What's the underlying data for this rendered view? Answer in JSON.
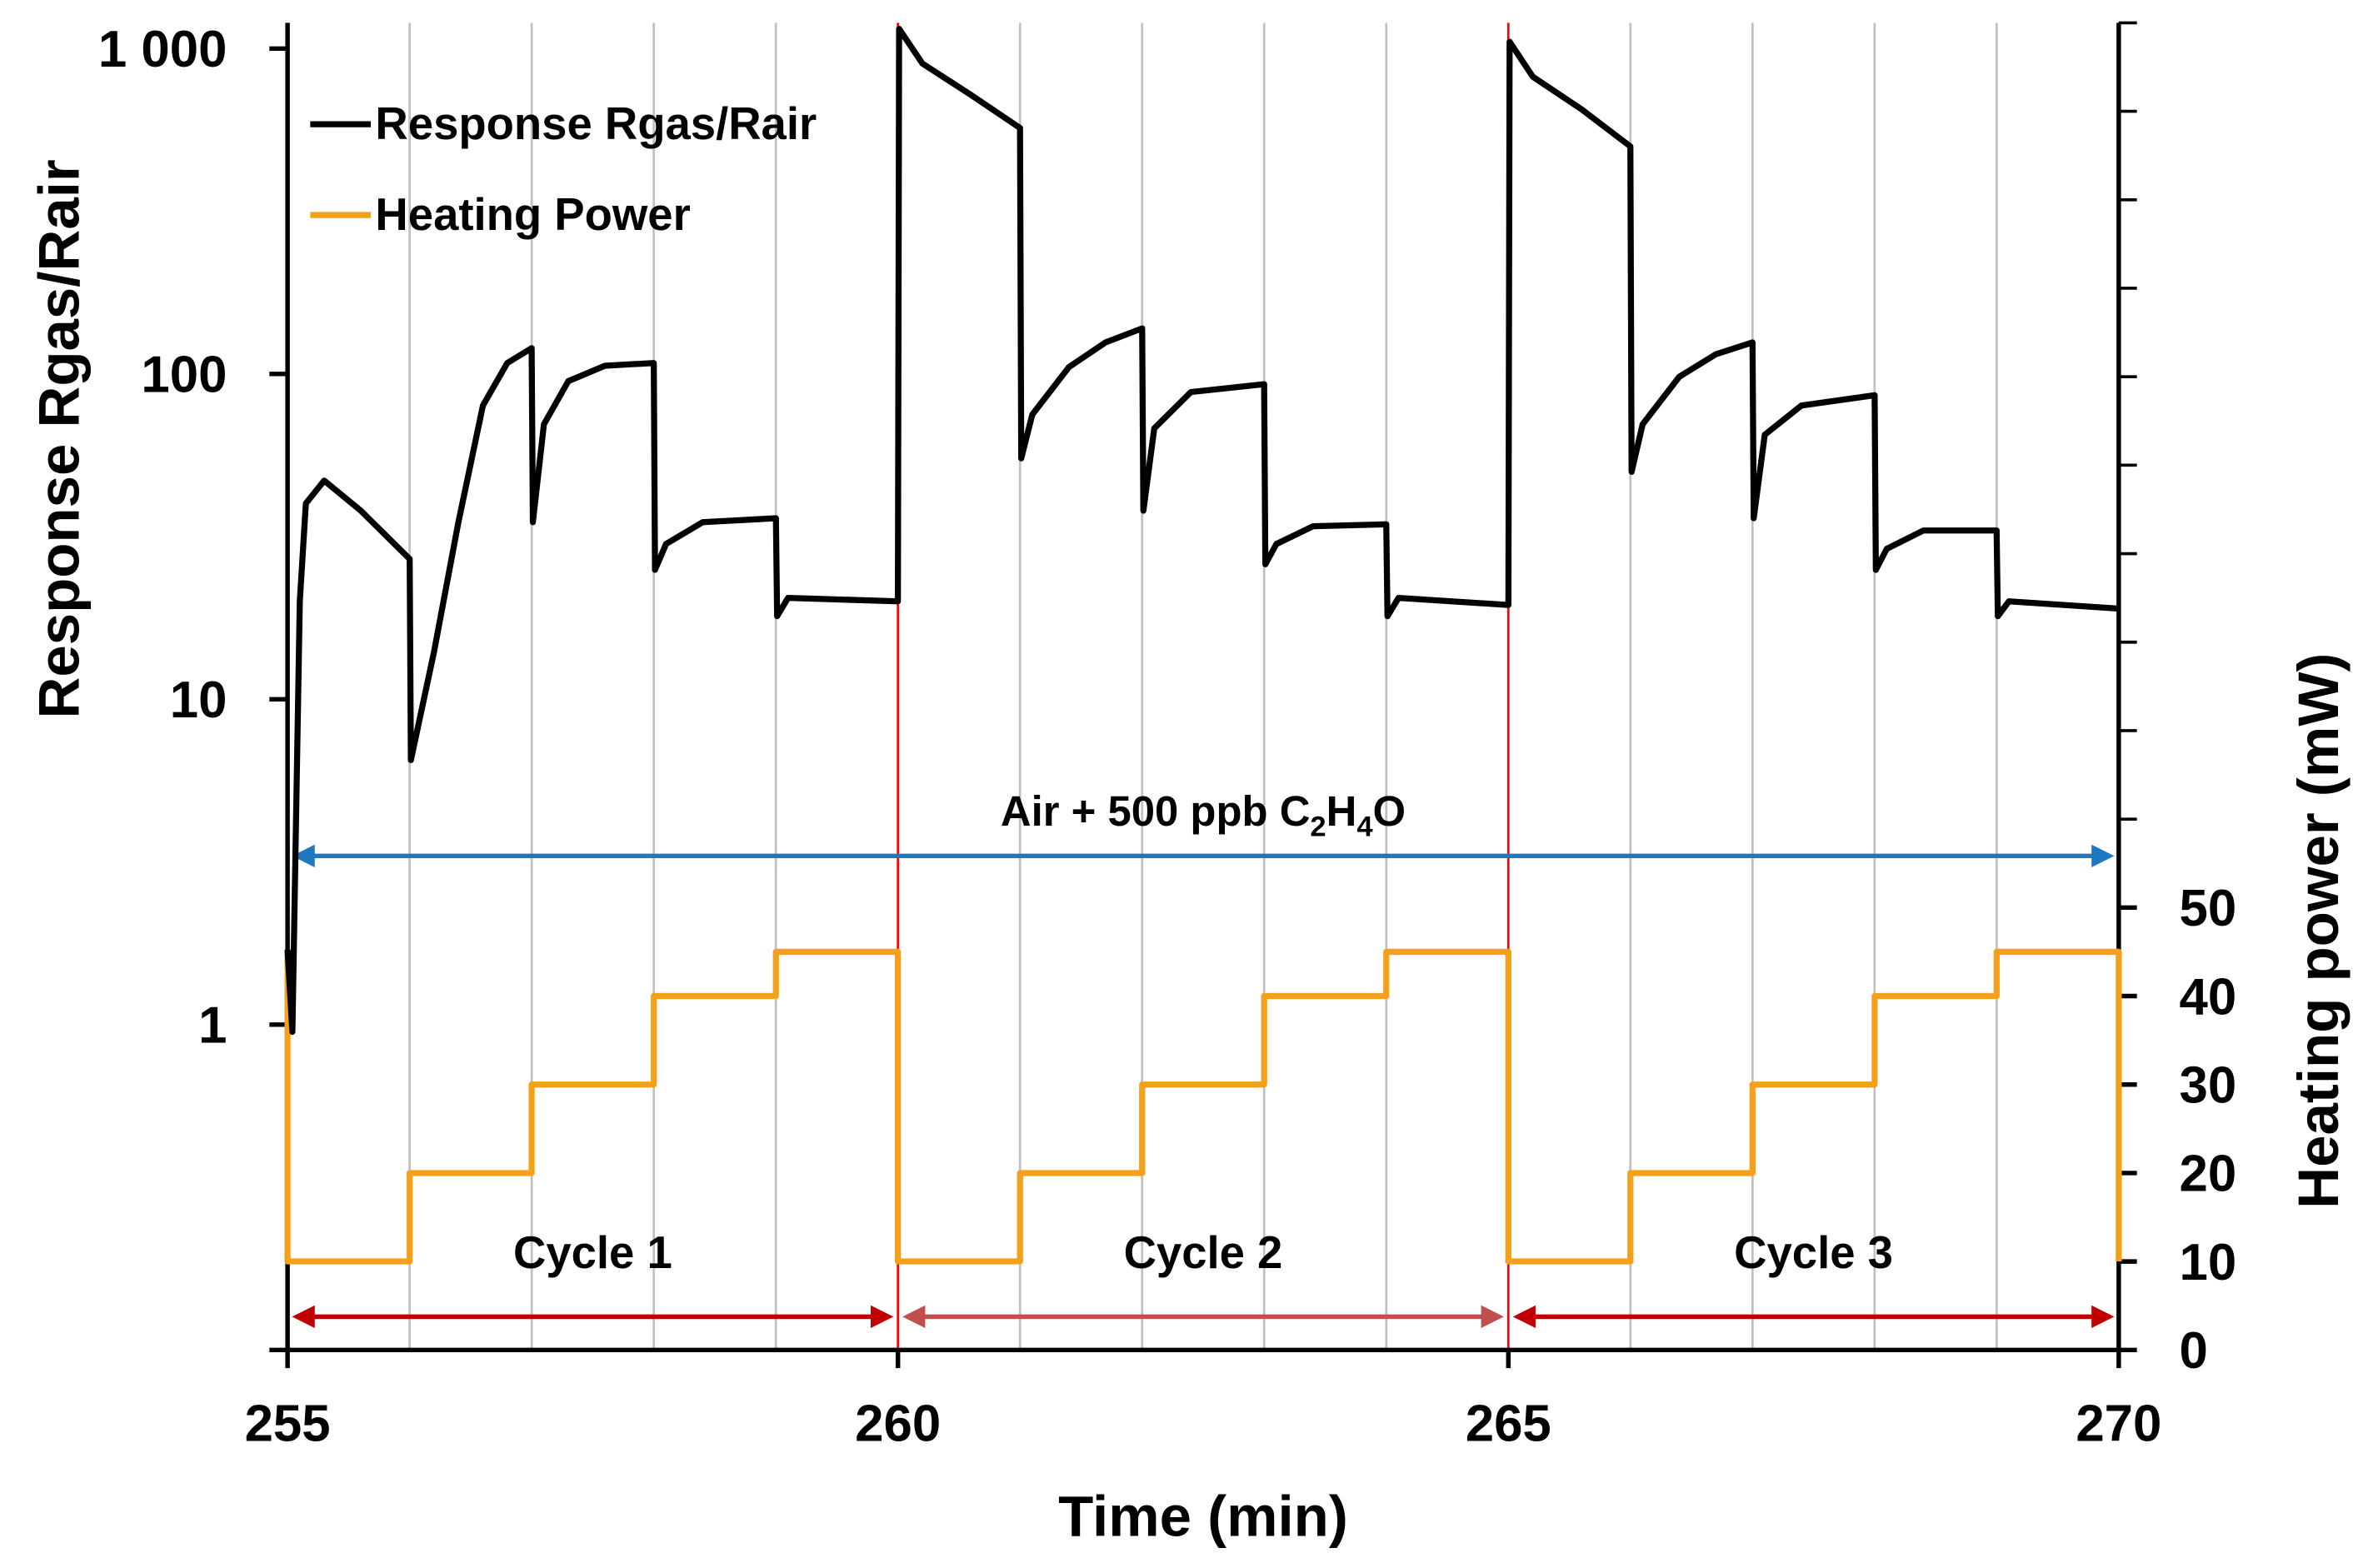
{
  "chart_data": {
    "type": "line",
    "x_label": "Time (min)",
    "y_label": "Response Rgas/Rair",
    "y2_label": "Heating power (mW)",
    "xlim": [
      255,
      270
    ],
    "xticks": [
      255,
      260,
      265,
      270
    ],
    "xgrid_step": 1,
    "xgrid_color": "#c0c0c0",
    "cycle_boundaries": [
      260,
      265
    ],
    "cycle_boundary_color": "#ff0000",
    "ylim": [
      0.1,
      1200
    ],
    "y_log": true,
    "yticks": [
      0.1,
      1,
      10,
      100,
      {
        "value": 1000,
        "label": "1 000"
      }
    ],
    "ylabeled": [
      1,
      10,
      100,
      1000
    ],
    "y2lim": [
      0,
      150
    ],
    "y2ticks": [
      0,
      10,
      20,
      30,
      40,
      50
    ],
    "y2minor_ticks": [
      60,
      70,
      80,
      90,
      100,
      110,
      120,
      130,
      140,
      150
    ],
    "legend": "top-left",
    "series": [
      {
        "name": "Response Rgas/Rair",
        "color": "#000000",
        "x": [
          255,
          255.04,
          255.1,
          255.15,
          255.3,
          255.6,
          256,
          256.01,
          256.2,
          256.4,
          256.6,
          256.8,
          257,
          257.01,
          257.1,
          257.3,
          257.6,
          258,
          258.01,
          258.1,
          258.4,
          259,
          259.01,
          259.1,
          260,
          260.01,
          260.2,
          260.6,
          261,
          261.01,
          261.1,
          261.4,
          261.7,
          262,
          262.01,
          262.1,
          262.4,
          263,
          263.01,
          263.1,
          263.4,
          264,
          264.01,
          264.1,
          265,
          265.01,
          265.2,
          265.6,
          266,
          266.01,
          266.1,
          266.4,
          266.7,
          267,
          267.01,
          267.1,
          267.4,
          268,
          268.01,
          268.1,
          268.4,
          269,
          269.01,
          269.1,
          270
        ],
        "values": [
          1.7,
          0.95,
          20,
          40,
          47,
          38,
          27,
          6.5,
          14,
          35,
          80,
          108,
          120,
          35,
          70,
          95,
          106,
          108,
          25,
          30,
          35,
          36,
          18,
          20.5,
          20,
          1150,
          900,
          720,
          570,
          55,
          75,
          105,
          125,
          138,
          38,
          68,
          88,
          93,
          26,
          30,
          34,
          34.5,
          18,
          20.5,
          19.5,
          1050,
          820,
          650,
          500,
          50,
          70,
          98,
          115,
          125,
          36,
          65,
          80,
          86,
          25,
          29,
          33,
          33,
          18,
          20,
          19
        ]
      },
      {
        "name": "Heating Power",
        "color": "#f5a01a",
        "axis": "y2",
        "x": [
          255,
          255,
          256,
          256,
          257,
          257,
          258,
          258,
          259,
          259,
          260,
          260,
          261,
          261,
          262,
          262,
          263,
          263,
          264,
          264,
          265,
          265,
          266,
          266,
          267,
          267,
          268,
          268,
          269,
          269,
          270,
          270
        ],
        "values": [
          45,
          10,
          10,
          20,
          20,
          30,
          30,
          40,
          40,
          45,
          45,
          10,
          10,
          20,
          20,
          30,
          30,
          40,
          40,
          45,
          45,
          10,
          10,
          20,
          20,
          30,
          30,
          40,
          40,
          45,
          45,
          10
        ]
      }
    ],
    "gas_annotation": {
      "parts": [
        "Air + 500 ppb C",
        "2",
        "H",
        "4",
        "O"
      ],
      "span": [
        255,
        270
      ],
      "y": 3.3,
      "color": "#1f77c0"
    },
    "cycles": [
      {
        "label": "Cycle 1",
        "span": [
          255,
          260
        ],
        "color": "#c00000"
      },
      {
        "label": "Cycle 2",
        "span": [
          260,
          265
        ],
        "color": "#c0504d"
      },
      {
        "label": "Cycle 3",
        "span": [
          265,
          270
        ],
        "color": "#c00000"
      }
    ]
  }
}
